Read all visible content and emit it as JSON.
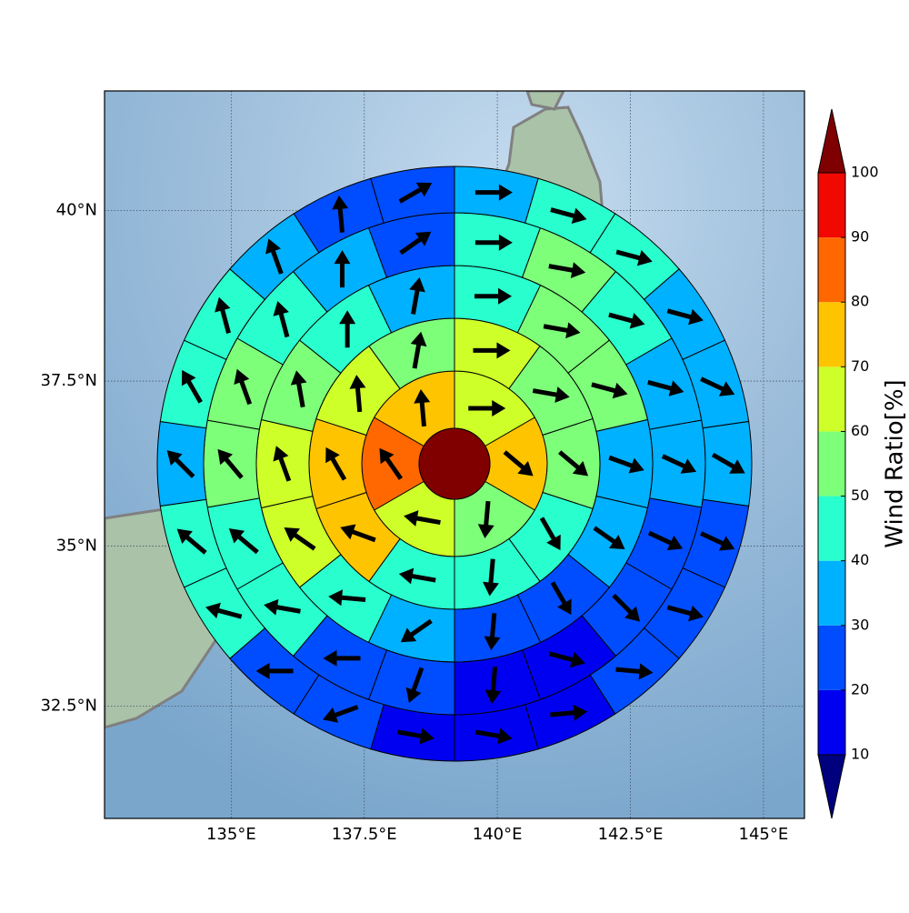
{
  "chart_data": {
    "type": "polar-grid-map",
    "projection": "mercator",
    "xlim": [
      132.62,
      145.77
    ],
    "ylim": [
      30.7,
      41.7
    ],
    "xticks": [
      {
        "value": 135,
        "label": "135°E"
      },
      {
        "value": 137.5,
        "label": "137.5°E"
      },
      {
        "value": 140,
        "label": "140°E"
      },
      {
        "value": 142.5,
        "label": "142.5°E"
      },
      {
        "value": 145,
        "label": "145°E"
      }
    ],
    "yticks": [
      {
        "value": 32.5,
        "label": "32.5°N"
      },
      {
        "value": 35,
        "label": "35°N"
      },
      {
        "value": 37.5,
        "label": "37.5°N"
      },
      {
        "value": 40,
        "label": "40°N"
      }
    ],
    "grid": true,
    "center_color": "#800000",
    "rings": [
      {
        "values": [
          65,
          75,
          55,
          65,
          85,
          75
        ],
        "directions": [
          0,
          -40,
          -95,
          170,
          125,
          95
        ]
      },
      {
        "values": [
          65,
          55,
          55,
          45,
          45,
          45,
          75,
          75,
          65,
          55
        ],
        "directions": [
          0,
          -10,
          -40,
          -60,
          -95,
          170,
          160,
          120,
          95,
          80
        ]
      },
      {
        "values": [
          45,
          55,
          55,
          35,
          35,
          25,
          25,
          35,
          45,
          65,
          65,
          55,
          45,
          35
        ],
        "directions": [
          0,
          -10,
          -15,
          -20,
          -35,
          -60,
          -95,
          215,
          175,
          145,
          110,
          100,
          90,
          80
        ]
      },
      {
        "values": [
          45,
          55,
          45,
          35,
          35,
          25,
          25,
          15,
          15,
          25,
          25,
          45,
          45,
          55,
          55,
          45,
          35,
          25
        ],
        "directions": [
          0,
          -10,
          -15,
          -15,
          -25,
          -25,
          -45,
          -15,
          -95,
          -110,
          180,
          170,
          140,
          130,
          110,
          105,
          90,
          35
        ]
      },
      {
        "values": [
          35,
          45,
          45,
          35,
          35,
          35,
          25,
          25,
          25,
          15,
          15,
          15,
          25,
          25,
          45,
          45,
          35,
          45,
          45,
          35,
          25,
          25
        ],
        "directions": [
          0,
          -15,
          -15,
          -15,
          -25,
          -30,
          -25,
          -15,
          -5,
          5,
          -10,
          -10,
          200,
          180,
          165,
          140,
          135,
          120,
          105,
          110,
          95,
          30
        ]
      }
    ],
    "colorbar": {
      "label": "Wind Ratio[%]",
      "ticks": [
        10,
        20,
        30,
        40,
        50,
        60,
        70,
        80,
        90,
        100
      ],
      "colors": [
        "#00007f",
        "#0000f1",
        "#004dff",
        "#00b1ff",
        "#29ffce",
        "#7dff7a",
        "#ceff29",
        "#ffc400",
        "#ff6800",
        "#f10800",
        "#7f0000"
      ]
    }
  }
}
